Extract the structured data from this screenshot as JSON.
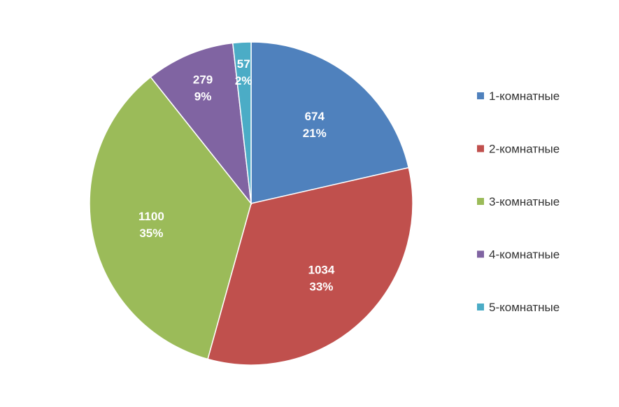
{
  "chart_data": {
    "type": "pie",
    "title": "",
    "legend_position": "right",
    "start": "top, clockwise",
    "slices": [
      {
        "label": "1-комнатные",
        "value": 674,
        "percent": "21%",
        "color": "#4F81BD"
      },
      {
        "label": "2-комнатные",
        "value": 1034,
        "percent": "33%",
        "color": "#C0504D"
      },
      {
        "label": "3-комнатные",
        "value": 1100,
        "percent": "35%",
        "color": "#9BBB59"
      },
      {
        "label": "4-комнатные",
        "value": 279,
        "percent": "9%",
        "color": "#8064A2"
      },
      {
        "label": "5-комнатные",
        "value": 57,
        "percent": "2%",
        "color": "#4BACC6"
      }
    ]
  }
}
